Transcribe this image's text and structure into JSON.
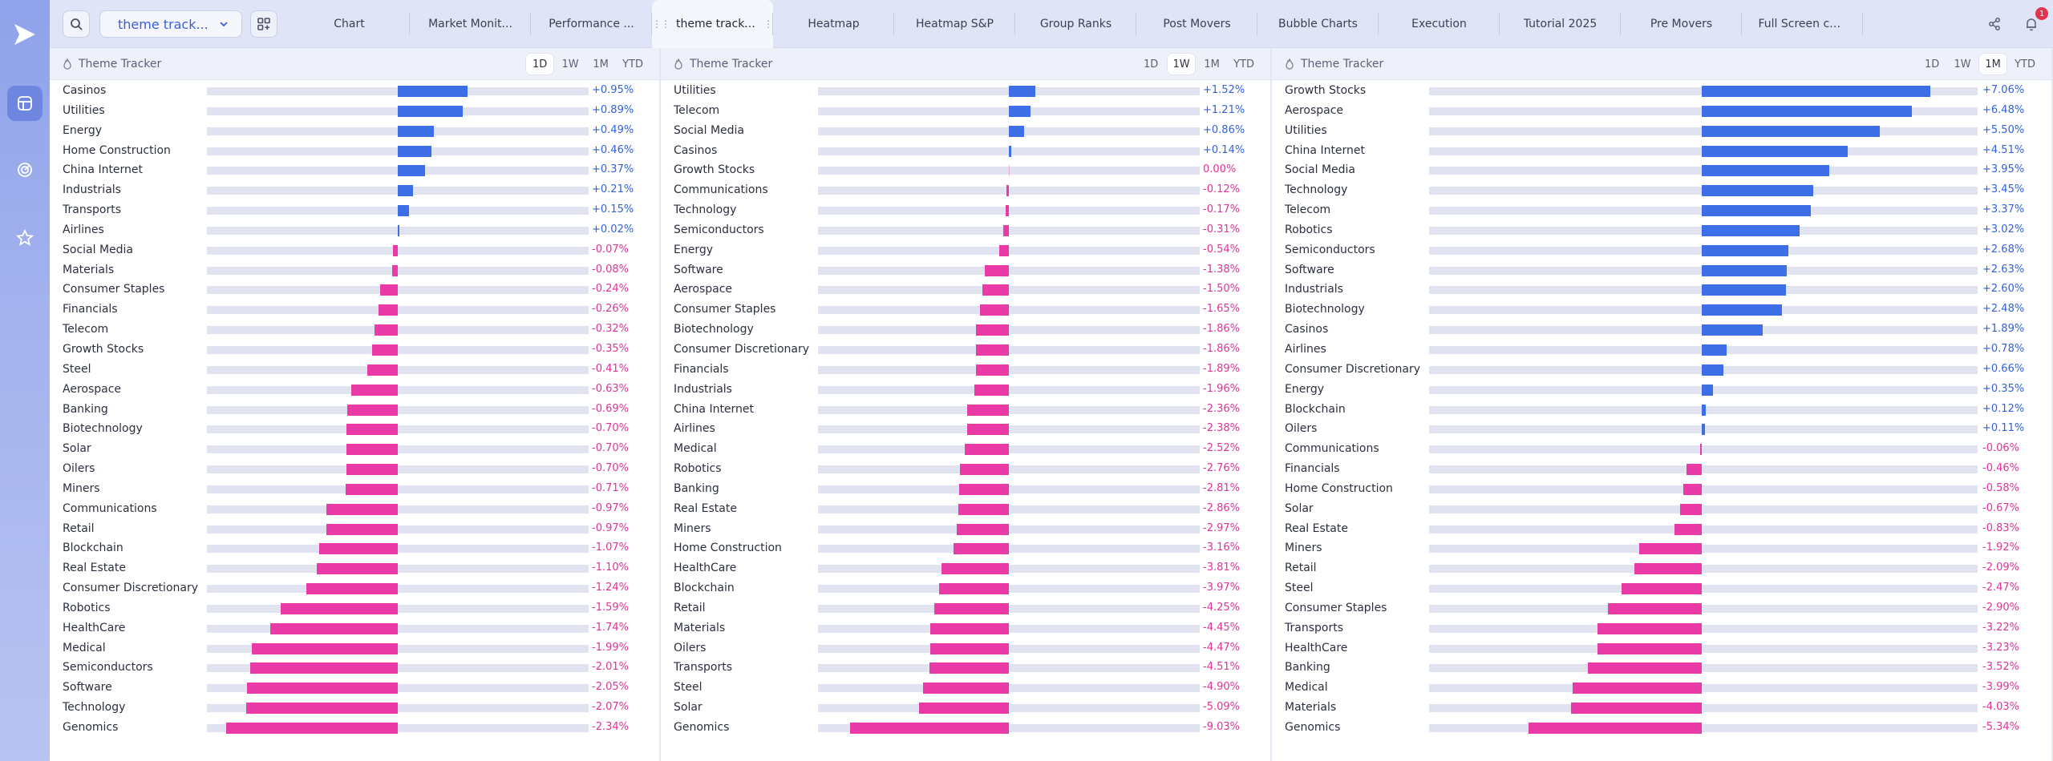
{
  "topbar": {
    "workspace": "theme track...",
    "tabs": [
      {
        "label": "Chart",
        "active": false
      },
      {
        "label": "Market Monit...",
        "active": false
      },
      {
        "label": "Performance ...",
        "active": false
      },
      {
        "label": "theme tracker",
        "active": true
      },
      {
        "label": "Heatmap",
        "active": false
      },
      {
        "label": "Heatmap S&P",
        "active": false
      },
      {
        "label": "Group Ranks",
        "active": false
      },
      {
        "label": "Post Movers",
        "active": false
      },
      {
        "label": "Bubble Charts",
        "active": false
      },
      {
        "label": "Execution",
        "active": false
      },
      {
        "label": "Tutorial 2025",
        "active": false
      },
      {
        "label": "Pre Movers",
        "active": false
      },
      {
        "label": "Full Screen ch...",
        "active": false
      }
    ],
    "notification_count": "1"
  },
  "colors": {
    "positive": "#3d6ee6",
    "negative": "#e93aa5"
  },
  "periods": [
    "1D",
    "1W",
    "1M",
    "YTD"
  ],
  "panels": [
    {
      "title": "Theme Tracker",
      "active_period": "1D",
      "rows": [
        {
          "name": "Casinos",
          "value": 0.95,
          "label": "+0.95%"
        },
        {
          "name": "Utilities",
          "value": 0.89,
          "label": "+0.89%"
        },
        {
          "name": "Energy",
          "value": 0.49,
          "label": "+0.49%"
        },
        {
          "name": "Home Construction",
          "value": 0.46,
          "label": "+0.46%"
        },
        {
          "name": "China Internet",
          "value": 0.37,
          "label": "+0.37%"
        },
        {
          "name": "Industrials",
          "value": 0.21,
          "label": "+0.21%"
        },
        {
          "name": "Transports",
          "value": 0.15,
          "label": "+0.15%"
        },
        {
          "name": "Airlines",
          "value": 0.02,
          "label": "+0.02%"
        },
        {
          "name": "Social Media",
          "value": -0.07,
          "label": "-0.07%"
        },
        {
          "name": "Materials",
          "value": -0.08,
          "label": "-0.08%"
        },
        {
          "name": "Consumer Staples",
          "value": -0.24,
          "label": "-0.24%"
        },
        {
          "name": "Financials",
          "value": -0.26,
          "label": "-0.26%"
        },
        {
          "name": "Telecom",
          "value": -0.32,
          "label": "-0.32%"
        },
        {
          "name": "Growth Stocks",
          "value": -0.35,
          "label": "-0.35%"
        },
        {
          "name": "Steel",
          "value": -0.41,
          "label": "-0.41%"
        },
        {
          "name": "Aerospace",
          "value": -0.63,
          "label": "-0.63%"
        },
        {
          "name": "Banking",
          "value": -0.69,
          "label": "-0.69%"
        },
        {
          "name": "Biotechnology",
          "value": -0.7,
          "label": "-0.70%"
        },
        {
          "name": "Solar",
          "value": -0.7,
          "label": "-0.70%"
        },
        {
          "name": "Oilers",
          "value": -0.7,
          "label": "-0.70%"
        },
        {
          "name": "Miners",
          "value": -0.71,
          "label": "-0.71%"
        },
        {
          "name": "Communications",
          "value": -0.97,
          "label": "-0.97%"
        },
        {
          "name": "Retail",
          "value": -0.97,
          "label": "-0.97%"
        },
        {
          "name": "Blockchain",
          "value": -1.07,
          "label": "-1.07%"
        },
        {
          "name": "Real Estate",
          "value": -1.1,
          "label": "-1.10%"
        },
        {
          "name": "Consumer Discretionary",
          "value": -1.24,
          "label": "-1.24%"
        },
        {
          "name": "Robotics",
          "value": -1.59,
          "label": "-1.59%"
        },
        {
          "name": "HealthCare",
          "value": -1.74,
          "label": "-1.74%"
        },
        {
          "name": "Medical",
          "value": -1.99,
          "label": "-1.99%"
        },
        {
          "name": "Semiconductors",
          "value": -2.01,
          "label": "-2.01%"
        },
        {
          "name": "Software",
          "value": -2.05,
          "label": "-2.05%"
        },
        {
          "name": "Technology",
          "value": -2.07,
          "label": "-2.07%"
        },
        {
          "name": "Genomics",
          "value": -2.34,
          "label": "-2.34%"
        }
      ]
    },
    {
      "title": "Theme Tracker",
      "active_period": "1W",
      "rows": [
        {
          "name": "Utilities",
          "value": 1.52,
          "label": "+1.52%"
        },
        {
          "name": "Telecom",
          "value": 1.21,
          "label": "+1.21%"
        },
        {
          "name": "Social Media",
          "value": 0.86,
          "label": "+0.86%"
        },
        {
          "name": "Casinos",
          "value": 0.14,
          "label": "+0.14%"
        },
        {
          "name": "Growth Stocks",
          "value": 0.0,
          "label": "0.00%"
        },
        {
          "name": "Communications",
          "value": -0.12,
          "label": "-0.12%"
        },
        {
          "name": "Technology",
          "value": -0.17,
          "label": "-0.17%"
        },
        {
          "name": "Semiconductors",
          "value": -0.31,
          "label": "-0.31%"
        },
        {
          "name": "Energy",
          "value": -0.54,
          "label": "-0.54%"
        },
        {
          "name": "Software",
          "value": -1.38,
          "label": "-1.38%"
        },
        {
          "name": "Aerospace",
          "value": -1.5,
          "label": "-1.50%"
        },
        {
          "name": "Consumer Staples",
          "value": -1.65,
          "label": "-1.65%"
        },
        {
          "name": "Biotechnology",
          "value": -1.86,
          "label": "-1.86%"
        },
        {
          "name": "Consumer Discretionary",
          "value": -1.86,
          "label": "-1.86%"
        },
        {
          "name": "Financials",
          "value": -1.89,
          "label": "-1.89%"
        },
        {
          "name": "Industrials",
          "value": -1.96,
          "label": "-1.96%"
        },
        {
          "name": "China Internet",
          "value": -2.36,
          "label": "-2.36%"
        },
        {
          "name": "Airlines",
          "value": -2.38,
          "label": "-2.38%"
        },
        {
          "name": "Medical",
          "value": -2.52,
          "label": "-2.52%"
        },
        {
          "name": "Robotics",
          "value": -2.76,
          "label": "-2.76%"
        },
        {
          "name": "Banking",
          "value": -2.81,
          "label": "-2.81%"
        },
        {
          "name": "Real Estate",
          "value": -2.86,
          "label": "-2.86%"
        },
        {
          "name": "Miners",
          "value": -2.97,
          "label": "-2.97%"
        },
        {
          "name": "Home Construction",
          "value": -3.16,
          "label": "-3.16%"
        },
        {
          "name": "HealthCare",
          "value": -3.81,
          "label": "-3.81%"
        },
        {
          "name": "Blockchain",
          "value": -3.97,
          "label": "-3.97%"
        },
        {
          "name": "Retail",
          "value": -4.25,
          "label": "-4.25%"
        },
        {
          "name": "Materials",
          "value": -4.45,
          "label": "-4.45%"
        },
        {
          "name": "Oilers",
          "value": -4.47,
          "label": "-4.47%"
        },
        {
          "name": "Transports",
          "value": -4.51,
          "label": "-4.51%"
        },
        {
          "name": "Steel",
          "value": -4.9,
          "label": "-4.90%"
        },
        {
          "name": "Solar",
          "value": -5.09,
          "label": "-5.09%"
        },
        {
          "name": "Genomics",
          "value": -9.03,
          "label": "-9.03%"
        }
      ]
    },
    {
      "title": "Theme Tracker",
      "active_period": "1M",
      "rows": [
        {
          "name": "Growth Stocks",
          "value": 7.06,
          "label": "+7.06%"
        },
        {
          "name": "Aerospace",
          "value": 6.48,
          "label": "+6.48%"
        },
        {
          "name": "Utilities",
          "value": 5.5,
          "label": "+5.50%"
        },
        {
          "name": "China Internet",
          "value": 4.51,
          "label": "+4.51%"
        },
        {
          "name": "Social Media",
          "value": 3.95,
          "label": "+3.95%"
        },
        {
          "name": "Technology",
          "value": 3.45,
          "label": "+3.45%"
        },
        {
          "name": "Telecom",
          "value": 3.37,
          "label": "+3.37%"
        },
        {
          "name": "Robotics",
          "value": 3.02,
          "label": "+3.02%"
        },
        {
          "name": "Semiconductors",
          "value": 2.68,
          "label": "+2.68%"
        },
        {
          "name": "Software",
          "value": 2.63,
          "label": "+2.63%"
        },
        {
          "name": "Industrials",
          "value": 2.6,
          "label": "+2.60%"
        },
        {
          "name": "Biotechnology",
          "value": 2.48,
          "label": "+2.48%"
        },
        {
          "name": "Casinos",
          "value": 1.89,
          "label": "+1.89%"
        },
        {
          "name": "Airlines",
          "value": 0.78,
          "label": "+0.78%"
        },
        {
          "name": "Consumer Discretionary",
          "value": 0.66,
          "label": "+0.66%"
        },
        {
          "name": "Energy",
          "value": 0.35,
          "label": "+0.35%"
        },
        {
          "name": "Blockchain",
          "value": 0.12,
          "label": "+0.12%"
        },
        {
          "name": "Oilers",
          "value": 0.11,
          "label": "+0.11%"
        },
        {
          "name": "Communications",
          "value": -0.06,
          "label": "-0.06%"
        },
        {
          "name": "Financials",
          "value": -0.46,
          "label": "-0.46%"
        },
        {
          "name": "Home Construction",
          "value": -0.58,
          "label": "-0.58%"
        },
        {
          "name": "Solar",
          "value": -0.67,
          "label": "-0.67%"
        },
        {
          "name": "Real Estate",
          "value": -0.83,
          "label": "-0.83%"
        },
        {
          "name": "Miners",
          "value": -1.92,
          "label": "-1.92%"
        },
        {
          "name": "Retail",
          "value": -2.09,
          "label": "-2.09%"
        },
        {
          "name": "Steel",
          "value": -2.47,
          "label": "-2.47%"
        },
        {
          "name": "Consumer Staples",
          "value": -2.9,
          "label": "-2.90%"
        },
        {
          "name": "Transports",
          "value": -3.22,
          "label": "-3.22%"
        },
        {
          "name": "HealthCare",
          "value": -3.23,
          "label": "-3.23%"
        },
        {
          "name": "Banking",
          "value": -3.52,
          "label": "-3.52%"
        },
        {
          "name": "Medical",
          "value": -3.99,
          "label": "-3.99%"
        },
        {
          "name": "Materials",
          "value": -4.03,
          "label": "-4.03%"
        },
        {
          "name": "Genomics",
          "value": -5.34,
          "label": "-5.34%"
        }
      ]
    }
  ]
}
